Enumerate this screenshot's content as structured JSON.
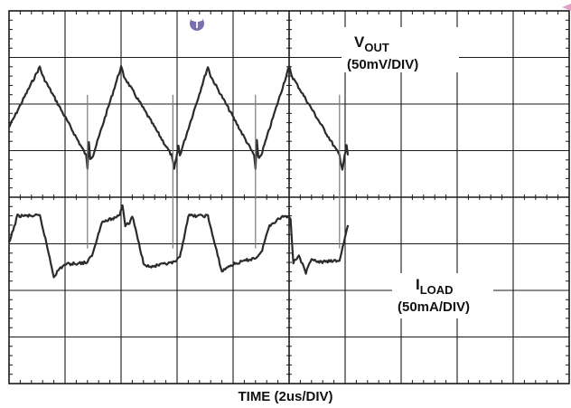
{
  "chart_data": {
    "type": "line",
    "xlabel": "TIME (2us/DIV)",
    "x_divisions": 10,
    "y_divisions": 8,
    "grid": true,
    "trigger_marker": "trigger-T-icon",
    "channel_labels": [
      {
        "main": "V",
        "sub": "OUT",
        "scale": "(50mV/DIV)"
      },
      {
        "main": "I",
        "sub": "LOAD",
        "scale": "(50mA/DIV)"
      }
    ],
    "colors": {
      "trace": "#2b2b2b",
      "grid": "#1a1a1a",
      "marker": "#7b6fb0",
      "background": "#ffffff"
    },
    "series": [
      {
        "name": "VOUT",
        "x_unit": "us",
        "y_unit": "mV",
        "x": [
          0.0,
          1.1,
          1.2,
          2.75,
          2.8,
          2.85,
          2.9,
          3.0,
          4.0,
          4.1,
          5.8,
          5.9,
          6.05,
          6.1,
          7.1,
          7.2,
          8.75,
          8.8,
          8.85,
          8.9,
          9.0,
          10.0,
          10.1,
          11.8,
          11.9,
          12.05,
          12.1
        ],
        "y": [
          -25,
          40,
          30,
          -55,
          -70,
          -40,
          -58,
          -55,
          40,
          30,
          -55,
          -70,
          -45,
          -55,
          40,
          30,
          -55,
          -70,
          -40,
          -58,
          -55,
          40,
          30,
          -55,
          -70,
          -45,
          -55
        ],
        "spikes": [
          {
            "x": 2.8,
            "min": -155,
            "max": 10
          },
          {
            "x": 5.85,
            "min": -155,
            "max": 10
          },
          {
            "x": 8.8,
            "min": -155,
            "max": 10
          },
          {
            "x": 11.8,
            "min": -155,
            "max": 10
          }
        ]
      },
      {
        "name": "ILOAD",
        "x_unit": "us",
        "y_unit": "mA",
        "x": [
          0.0,
          0.3,
          1.1,
          1.3,
          1.6,
          1.8,
          2.0,
          2.8,
          3.0,
          3.3,
          3.8,
          3.95,
          4.05,
          4.15,
          4.3,
          4.4,
          4.6,
          4.8,
          5.0,
          5.9,
          6.1,
          6.2,
          6.4,
          7.1,
          7.3,
          7.6,
          7.8,
          8.0,
          8.8,
          9.0,
          9.3,
          9.8,
          10.05,
          10.15,
          10.35,
          10.6,
          10.8,
          11.0,
          11.8,
          12.1
        ],
        "y": [
          0,
          30,
          30,
          5,
          -35,
          -27,
          -22,
          -20,
          -10,
          23,
          28,
          32,
          42,
          20,
          22,
          30,
          5,
          -20,
          -25,
          -20,
          -15,
          0,
          30,
          30,
          5,
          -30,
          -25,
          -22,
          -15,
          -10,
          20,
          30,
          28,
          -20,
          -12,
          -32,
          -15,
          -20,
          -18,
          20
        ]
      }
    ]
  }
}
